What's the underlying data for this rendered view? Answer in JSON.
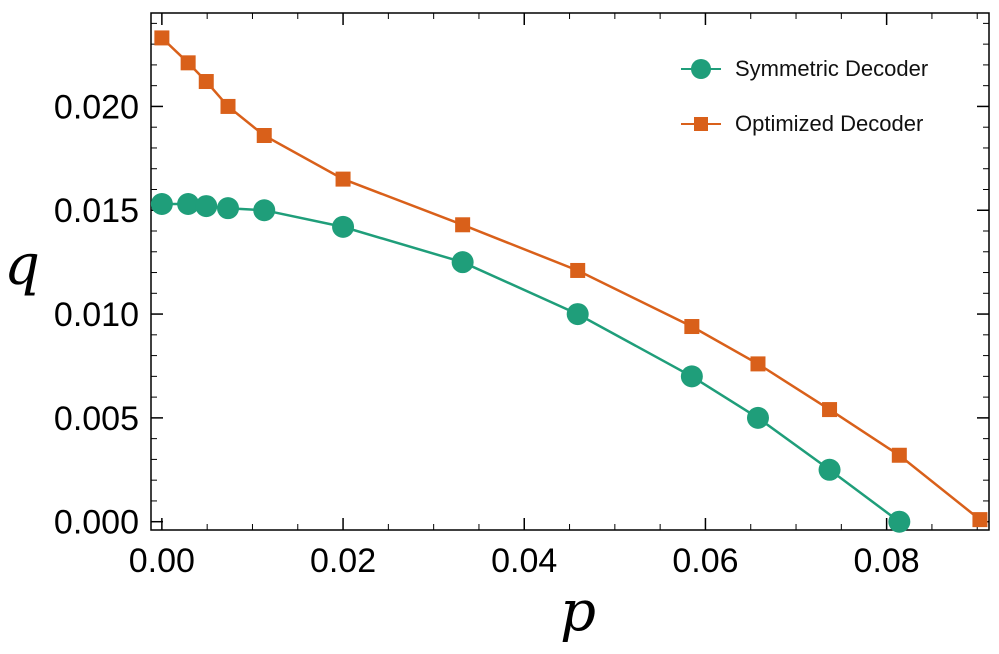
{
  "chart_data": {
    "type": "line",
    "title": "",
    "xlabel": "p",
    "ylabel": "q",
    "xlim": [
      -0.0012,
      0.0913
    ],
    "ylim": [
      -0.0004,
      0.0245
    ],
    "x_ticks": [
      "0.00",
      "0.02",
      "0.04",
      "0.06",
      "0.08"
    ],
    "x_tick_values": [
      0,
      0.02,
      0.04,
      0.06,
      0.08
    ],
    "y_ticks": [
      "0.000",
      "0.005",
      "0.010",
      "0.015",
      "0.020"
    ],
    "y_tick_values": [
      0,
      0.005,
      0.01,
      0.015,
      0.02
    ],
    "grid": false,
    "legend_position": "top-right",
    "series": [
      {
        "name": "Symmetric Decoder",
        "marker": "circle",
        "color": "#1f9e7a",
        "x": [
          0.0,
          0.0029,
          0.0049,
          0.0073,
          0.0113,
          0.02,
          0.0332,
          0.0459,
          0.0585,
          0.0658,
          0.0737,
          0.0814
        ],
        "y": [
          0.0153,
          0.0153,
          0.0152,
          0.0151,
          0.015,
          0.0142,
          0.0125,
          0.01,
          0.007,
          0.005,
          0.0025,
          0.0
        ]
      },
      {
        "name": "Optimized Decoder",
        "marker": "square",
        "color": "#d9601a",
        "x": [
          0.0,
          0.0029,
          0.0049,
          0.0073,
          0.0113,
          0.02,
          0.0332,
          0.0459,
          0.0585,
          0.0658,
          0.0737,
          0.0814,
          0.0903
        ],
        "y": [
          0.0233,
          0.0221,
          0.0212,
          0.02,
          0.0186,
          0.0165,
          0.0143,
          0.0121,
          0.0094,
          0.0076,
          0.0054,
          0.0032,
          0.0001
        ]
      }
    ]
  }
}
